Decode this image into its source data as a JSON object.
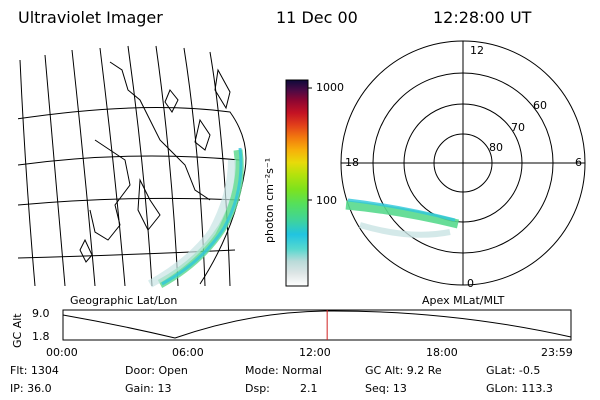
{
  "header": {
    "instrument": "Ultraviolet Imager",
    "date": "11 Dec 00",
    "time": "12:28:00 UT"
  },
  "colorbar": {
    "unit_label": "photon cm⁻²s⁻¹",
    "ticks": [
      "1000",
      "100"
    ],
    "colors": [
      "#ffffff",
      "#dfe6e6",
      "#b9dbd9",
      "#56d8cf",
      "#21c4e1",
      "#3fd49a",
      "#55e05a",
      "#7ee21d",
      "#b4e20c",
      "#e8da0a",
      "#f7b00a",
      "#f27a0e",
      "#e2401a",
      "#c41224",
      "#8e0631",
      "#4b0a45",
      "#0d0a3a"
    ]
  },
  "geo_map": {
    "label": "Geographic Lat/Lon"
  },
  "polar_plot": {
    "label": "Apex MLat/MLT",
    "mlt_labels": [
      "12",
      "18",
      "6",
      "0"
    ],
    "lat_labels": [
      "60",
      "70",
      "80"
    ]
  },
  "timeline": {
    "y_label": "GC Alt",
    "y_ticks": [
      "9.0",
      "1.8"
    ],
    "x_ticks": [
      "00:00",
      "06:00",
      "12:00",
      "18:00",
      "23:59"
    ],
    "current_time_fraction": 0.52
  },
  "info": {
    "flt": "Flt: 1304",
    "ip": "IP: 36.0",
    "door": "Door: Open",
    "gain": "Gain: 13",
    "mode": "Mode: Normal",
    "dsp_label": "Dsp:",
    "dsp_value": "2.1",
    "gc_alt": "GC Alt: 9.2 Re",
    "seq": "Seq: 13",
    "glat": "GLat: -0.5",
    "glon": "GLon: 113.3"
  }
}
